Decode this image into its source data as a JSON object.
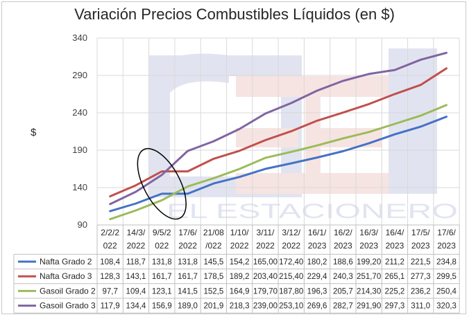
{
  "chart_data": {
    "type": "line",
    "title": "Variación Precios Combustibles Líquidos (en $)",
    "ylabel": "$",
    "xlabel": "",
    "ylim": [
      90,
      340
    ],
    "yticks": [
      90,
      140,
      190,
      240,
      290,
      340
    ],
    "grid": "both",
    "legend": "data-table-bottom",
    "categories": [
      [
        "2/2/2",
        "022"
      ],
      [
        "14/3/",
        "2022"
      ],
      [
        "9/5/2",
        "022"
      ],
      [
        "17/6/",
        "2022"
      ],
      [
        "21/08",
        "/022"
      ],
      [
        "1/10/",
        "2022"
      ],
      [
        "3/11/",
        "2022"
      ],
      [
        "3/12/",
        "2022"
      ],
      [
        "16/1/",
        "2023"
      ],
      [
        "16/2/",
        "2023"
      ],
      [
        "16/3/",
        "2023"
      ],
      [
        "16/4/",
        "2023"
      ],
      [
        "17/5/",
        "2023"
      ],
      [
        "17/6/",
        "2023"
      ]
    ],
    "series": [
      {
        "name": "Nafta Grado 2",
        "color": "#4472c4",
        "values": [
          108.4,
          118.7,
          131.8,
          131.8,
          145.5,
          154.2,
          165.0,
          172.4,
          180.2,
          188.6,
          199.2,
          211.2,
          221.5,
          234.8
        ],
        "labels": [
          "108,4",
          "118,7",
          "131,8",
          "131,8",
          "145,5",
          "154,2",
          "165,00",
          "172,40",
          "180,2",
          "188,6",
          "199,20",
          "211,2",
          "221,5",
          "234,8"
        ]
      },
      {
        "name": "Nafta Grado 3",
        "color": "#c0504d",
        "values": [
          128.3,
          143.1,
          161.7,
          161.7,
          178.5,
          189.2,
          203.4,
          215.4,
          229.4,
          240.3,
          251.7,
          265.1,
          277.3,
          299.5
        ],
        "labels": [
          "128,3",
          "143,1",
          "161,7",
          "161,7",
          "178,5",
          "189,2",
          "203,40",
          "215,40",
          "229,4",
          "240,3",
          "251,70",
          "265,1",
          "277,3",
          "299,5"
        ]
      },
      {
        "name": "Gasoil Grado 2",
        "color": "#9bbb59",
        "values": [
          97.7,
          109.4,
          123.1,
          141.5,
          152.5,
          164.9,
          179.7,
          187.8,
          196.3,
          205.7,
          214.3,
          225.2,
          236.2,
          250.4
        ],
        "labels": [
          "97,7",
          "109,4",
          "123,1",
          "141,5",
          "152,5",
          "164,9",
          "179,70",
          "187,80",
          "196,3",
          "205,7",
          "214,30",
          "225,2",
          "236,2",
          "250,4"
        ]
      },
      {
        "name": "Gasoil Grado 3",
        "color": "#8064a2",
        "values": [
          117.9,
          134.4,
          156.9,
          189.0,
          201.9,
          218.3,
          239.0,
          253.1,
          269.6,
          282.7,
          291.9,
          297.3,
          311.0,
          320.3
        ],
        "labels": [
          "117,9",
          "134,4",
          "156,9",
          "189,0",
          "201,9",
          "218,3",
          "239,00",
          "253,10",
          "269,6",
          "282,7",
          "291,90",
          "297,3",
          "311,0",
          "320,3"
        ]
      }
    ],
    "watermark": {
      "text": "EL ESTACIONERO",
      "logo_letters": "EE"
    },
    "annotation": {
      "shape": "ellipse",
      "around_category_index": 2
    }
  }
}
